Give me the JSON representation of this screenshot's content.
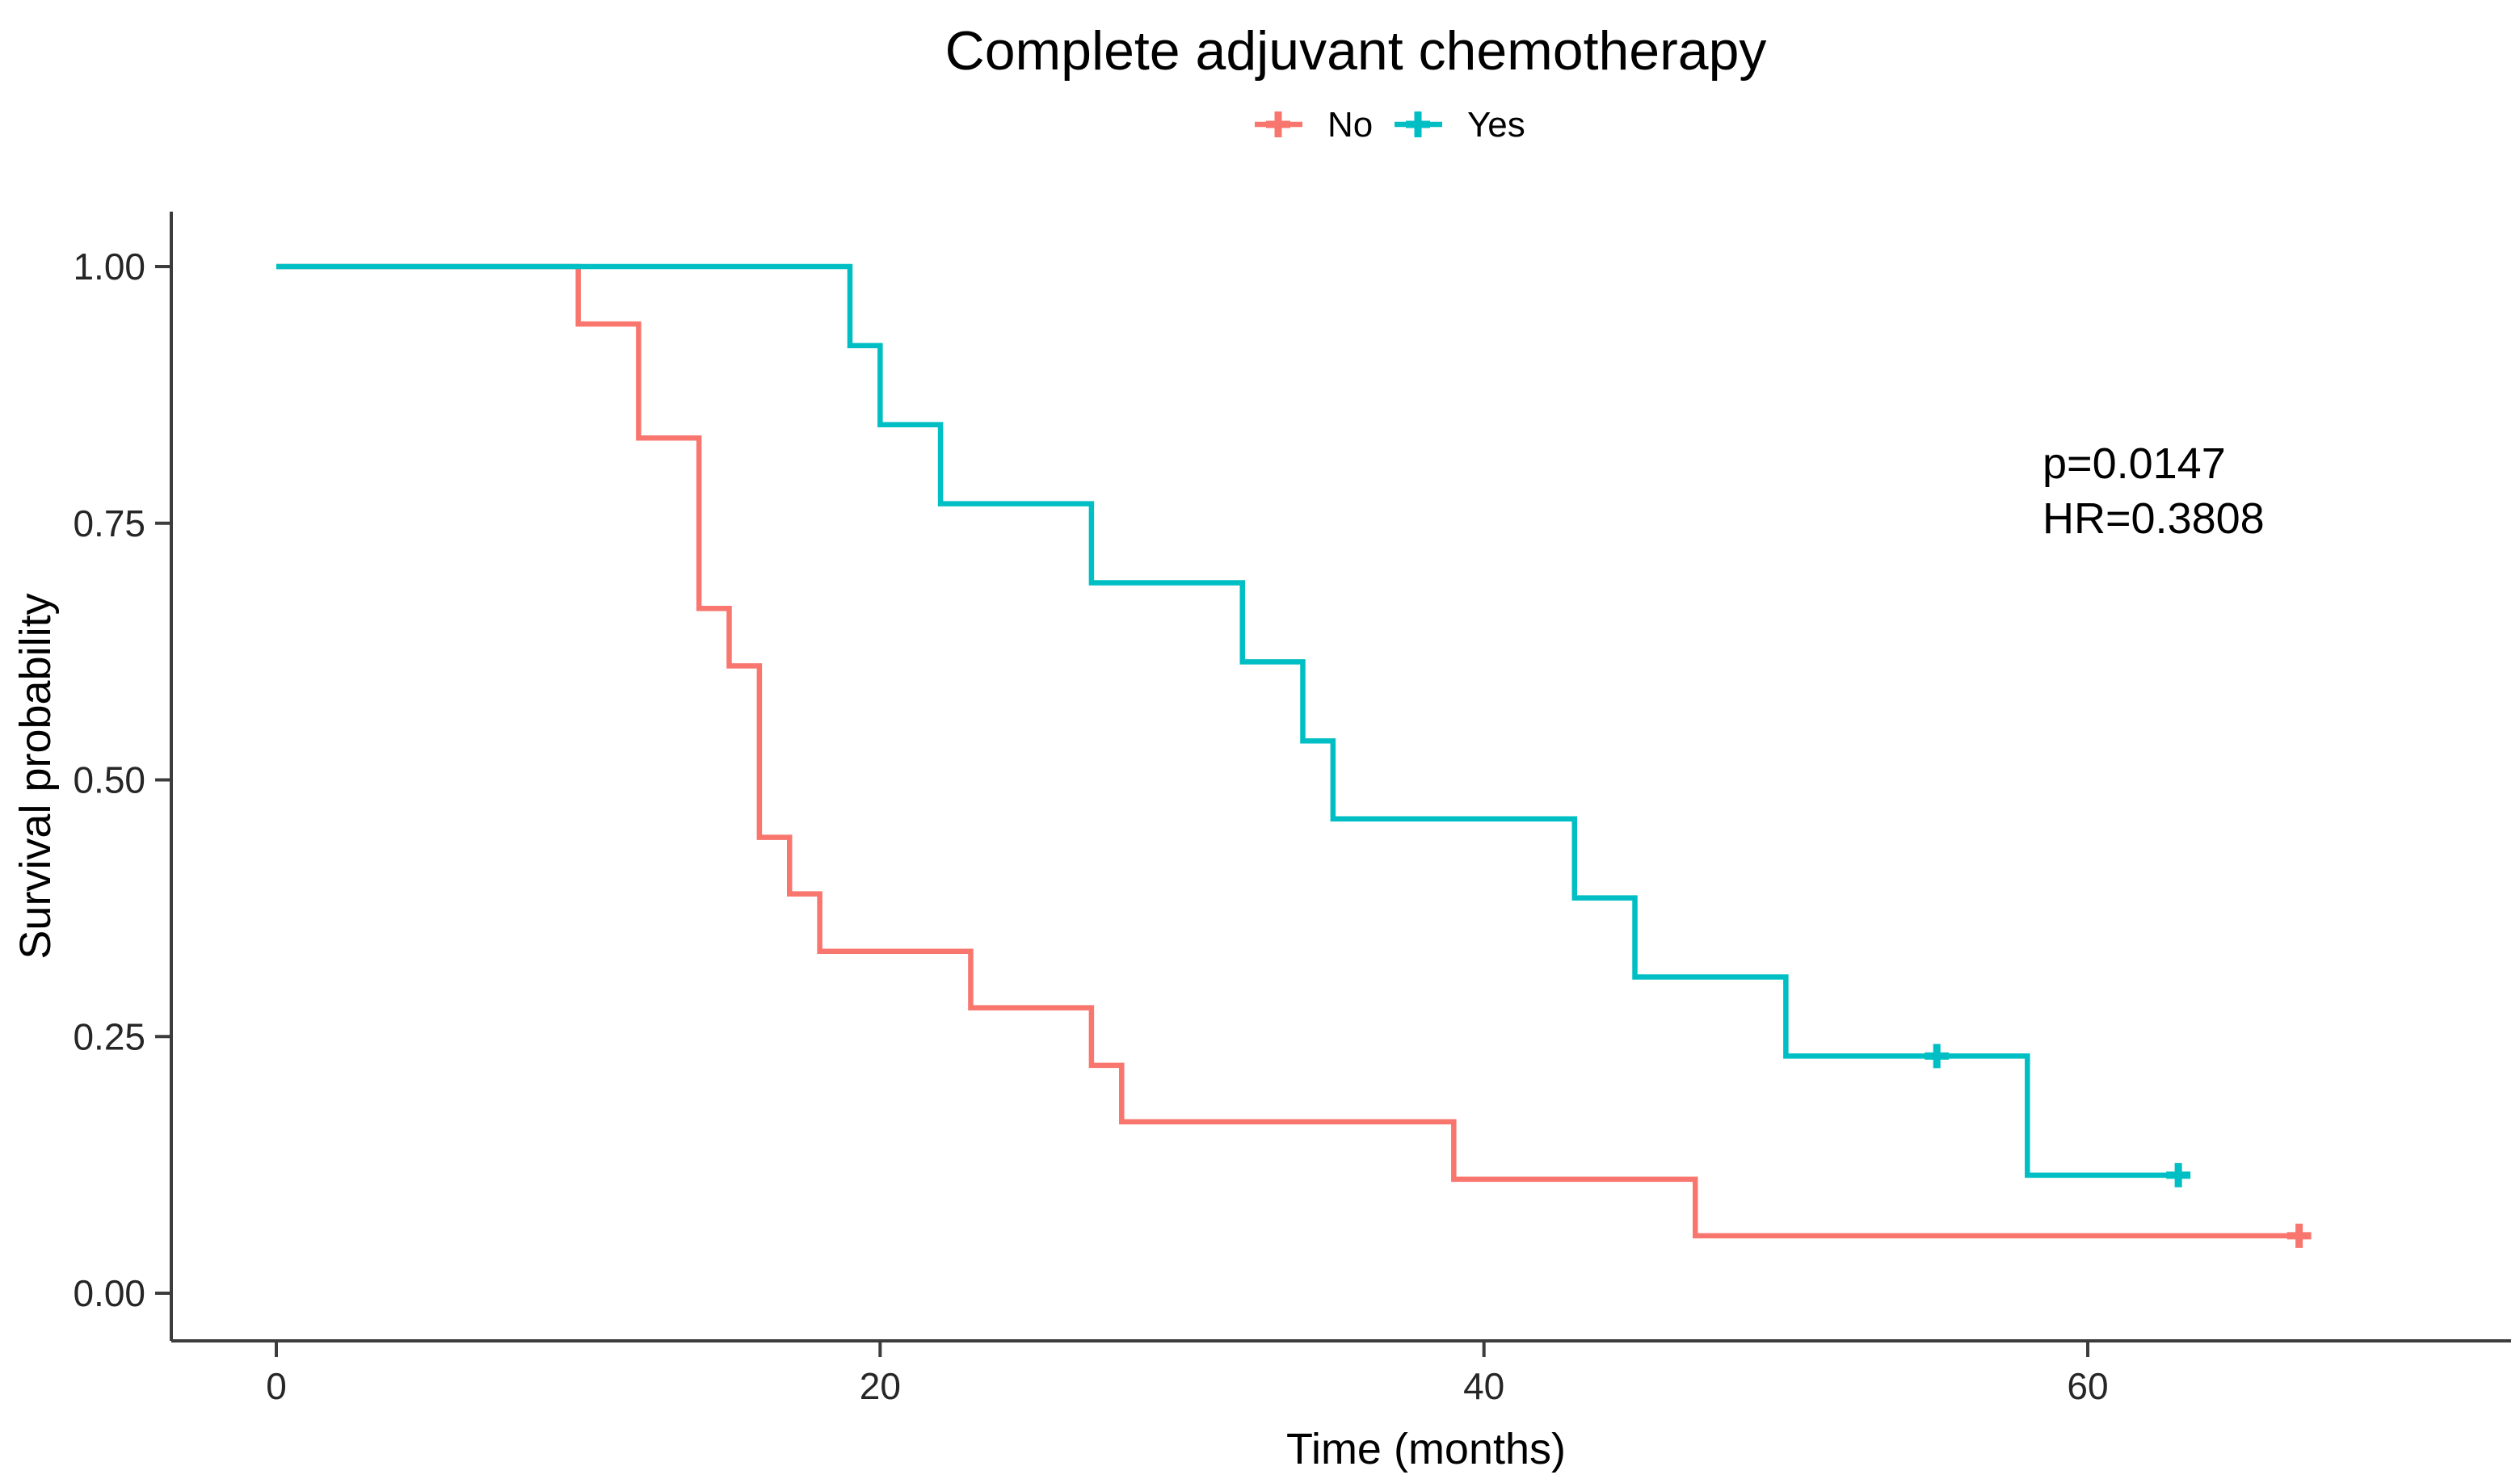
{
  "page": {
    "background": "#ffffff"
  },
  "title": "Complete adjuvant chemotherapy",
  "legend": {
    "items": [
      {
        "label": "No",
        "color": "#F8766D",
        "marker": "plus"
      },
      {
        "label": "Yes",
        "color": "#00BFC4",
        "marker": "plus"
      }
    ]
  },
  "annotation": {
    "p_value": "p=0.0147",
    "hazard_ratio": "HR=0.3808"
  },
  "axes": {
    "x": {
      "label": "Time (months)",
      "ticks": [
        0,
        20,
        40,
        60
      ],
      "range": [
        0,
        74
      ]
    },
    "y": {
      "label": "Survival probability",
      "tick_labels": [
        "1.00",
        "0.75",
        "0.50",
        "0.25",
        "0.00"
      ],
      "tick_values": [
        1.0,
        0.75,
        0.5,
        0.25,
        0.0
      ],
      "range": [
        0,
        1
      ]
    }
  },
  "chart_data": {
    "type": "line",
    "subtype": "kaplan_meier_step",
    "title": "Complete adjuvant chemotherapy",
    "xlabel": "Time (months)",
    "ylabel": "Survival probability",
    "xlim": [
      0,
      74
    ],
    "ylim": [
      0,
      1
    ],
    "grid": false,
    "legend_position": "top",
    "series": [
      {
        "name": "No",
        "color": "#F8766D",
        "steps": [
          [
            0,
            1.0
          ],
          [
            10,
            0.944
          ],
          [
            12,
            0.833
          ],
          [
            14,
            0.667
          ],
          [
            15,
            0.611
          ],
          [
            16,
            0.444
          ],
          [
            17,
            0.389
          ],
          [
            18,
            0.333
          ],
          [
            23,
            0.278
          ],
          [
            27,
            0.222
          ],
          [
            28,
            0.167
          ],
          [
            39,
            0.111
          ],
          [
            47,
            0.056
          ],
          [
            67,
            0.056
          ]
        ],
        "censor_marks": [
          [
            67,
            0.056
          ]
        ]
      },
      {
        "name": "Yes",
        "color": "#00BFC4",
        "steps": [
          [
            0,
            1.0
          ],
          [
            19,
            0.923
          ],
          [
            20,
            0.846
          ],
          [
            22,
            0.769
          ],
          [
            27,
            0.692
          ],
          [
            32,
            0.615
          ],
          [
            34,
            0.538
          ],
          [
            35,
            0.462
          ],
          [
            43,
            0.385
          ],
          [
            45,
            0.308
          ],
          [
            50,
            0.231
          ],
          [
            58,
            0.115
          ],
          [
            63,
            0.115
          ]
        ],
        "censor_marks": [
          [
            55,
            0.231
          ],
          [
            63,
            0.115
          ]
        ]
      }
    ]
  }
}
